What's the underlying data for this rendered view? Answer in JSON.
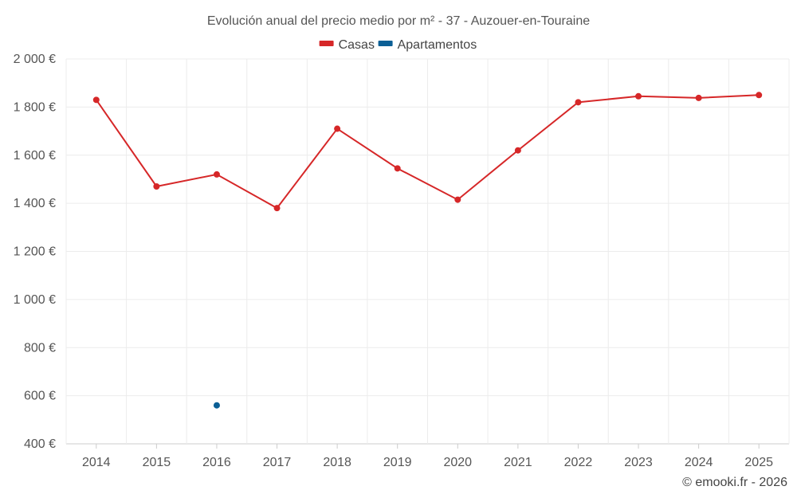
{
  "chart_data": {
    "type": "line",
    "title": "Evolución anual del precio medio por m² - 37 - Auzouer-en-Touraine",
    "categories": [
      "2014",
      "2015",
      "2016",
      "2017",
      "2018",
      "2019",
      "2020",
      "2021",
      "2022",
      "2023",
      "2024",
      "2025"
    ],
    "series": [
      {
        "name": "Casas",
        "color": "#d62728",
        "values": [
          1830,
          1470,
          1520,
          1380,
          1710,
          1545,
          1415,
          1620,
          1820,
          1845,
          1838,
          1850
        ]
      },
      {
        "name": "Apartamentos",
        "color": "#0b5f95",
        "values": [
          null,
          null,
          560,
          null,
          null,
          null,
          null,
          null,
          null,
          null,
          null,
          null
        ]
      }
    ],
    "ylim": [
      400,
      2000
    ],
    "yticks": [
      400,
      600,
      800,
      1000,
      1200,
      1400,
      1600,
      1800,
      2000
    ],
    "ytick_labels": [
      "400 €",
      "600 €",
      "800 €",
      "1 000 €",
      "1 200 €",
      "1 400 €",
      "1 600 €",
      "1 800 €",
      "2 000 €"
    ],
    "xlabel": "",
    "ylabel": "",
    "grid": true,
    "legend_position": "top-center"
  },
  "credit": "© emooki.fr - 2026"
}
